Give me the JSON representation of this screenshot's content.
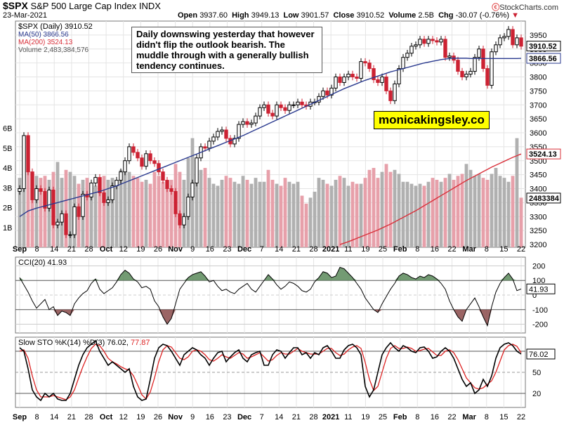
{
  "header": {
    "symbol": "$SPX",
    "name": "S&P 500 Large Cap Index INDX",
    "date": "23-Mar-2021",
    "open_label": "Open",
    "open": "3937.60",
    "high_label": "High",
    "high": "3949.13",
    "low_label": "Low",
    "low": "3901.57",
    "close_label": "Close",
    "close": "3910.52",
    "volume_label": "Volume",
    "volume": "2.5B",
    "chg_label": "Chg",
    "chg": "-30.07 (-0.76%)",
    "brand": "StockCharts.com"
  },
  "annotation": {
    "note": "Daily downswing yesterday that however didn't flip the outlook bearish. The muddle through with a generally bullish tendency continues.",
    "promo": "monicakingsley.co"
  },
  "colors": {
    "up": "#000000",
    "down": "#cc2233",
    "ma50": "#2a3a8f",
    "ma200": "#d9303a",
    "vol_up": "#b0b0b0",
    "vol_down": "#e7a0aa",
    "cci_fill_pos": "#5a8a5a",
    "cci_fill_neg": "#8a4a4a",
    "sto_k": "#000000",
    "sto_d": "#dd2222"
  },
  "chart_data": [
    {
      "type": "candlestick",
      "title": "$SPX (Daily) 3910.52",
      "legend": [
        "$SPX (Daily) 3910.52",
        "MA(50) 3866.56",
        "MA(200) 3524.13",
        "Volume 2,483,384,576"
      ],
      "ylim": [
        3190,
        4000
      ],
      "y_ticks": [
        "3200",
        "3250",
        "3300",
        "3350",
        "3400",
        "3450",
        "3500",
        "3550",
        "3600",
        "3650",
        "3700",
        "3750",
        "3800",
        "3850",
        "3900",
        "3950"
      ],
      "price_labels": {
        "last": "3910.52",
        "ma50": "3866.56",
        "ma200": "3524.13",
        "volume": "2483384"
      },
      "volume_ticks": [
        "1B",
        "2B",
        "3B",
        "4B",
        "5B",
        "6B"
      ],
      "volume_ylim_b": [
        0,
        11.4
      ],
      "x_labels": [
        "Sep",
        "8",
        "14",
        "21",
        "28",
        "Oct",
        "12",
        "19",
        "26",
        "Nov",
        "9",
        "16",
        "23",
        "Dec",
        "7",
        "14",
        "21",
        "28",
        "2021",
        "11",
        "19",
        "25",
        "Feb",
        "8",
        "16",
        "22",
        "Mar",
        "8",
        "15",
        "22"
      ],
      "series_close": [
        3400,
        3590,
        3460,
        3360,
        3400,
        3390,
        3330,
        3395,
        3270,
        3280,
        3310,
        3235,
        3235,
        3335,
        3300,
        3380,
        3370,
        3420,
        3440,
        3385,
        3350,
        3360,
        3410,
        3430,
        3460,
        3500,
        3550,
        3530,
        3510,
        3480,
        3525,
        3500,
        3490,
        3460,
        3430,
        3400,
        3390,
        3310,
        3270,
        3300,
        3370,
        3420,
        3510,
        3550,
        3545,
        3570,
        3585,
        3605,
        3610,
        3580,
        3560,
        3580,
        3630,
        3640,
        3630,
        3635,
        3660,
        3690,
        3700,
        3670,
        3660,
        3700,
        3690,
        3680,
        3700,
        3700,
        3710,
        3700,
        3695,
        3710,
        3710,
        3730,
        3750,
        3735,
        3760,
        3800,
        3780,
        3800,
        3810,
        3800,
        3795,
        3855,
        3850,
        3830,
        3790,
        3780,
        3800,
        3750,
        3715,
        3775,
        3830,
        3870,
        3885,
        3910,
        3915,
        3935,
        3920,
        3935,
        3930,
        3925,
        3935,
        3870,
        3875,
        3860,
        3820,
        3800,
        3810,
        3820,
        3870,
        3900,
        3830,
        3770,
        3890,
        3915,
        3940,
        3945,
        3970,
        3915,
        3940,
        3910
      ],
      "ma50": [
        3300,
        3310,
        3320,
        3325,
        3330,
        3334,
        3338,
        3342,
        3346,
        3350,
        3354,
        3358,
        3362,
        3366,
        3370,
        3374,
        3378,
        3382,
        3386,
        3390,
        3395,
        3400,
        3405,
        3410,
        3416,
        3422,
        3428,
        3434,
        3440,
        3446,
        3452,
        3458,
        3464,
        3470,
        3476,
        3482,
        3488,
        3494,
        3500,
        3506,
        3512,
        3518,
        3524,
        3530,
        3536,
        3542,
        3548,
        3554,
        3560,
        3566,
        3572,
        3578,
        3584,
        3590,
        3597,
        3604,
        3611,
        3618,
        3625,
        3632,
        3639,
        3646,
        3653,
        3660,
        3667,
        3674,
        3681,
        3688,
        3695,
        3702,
        3709,
        3716,
        3723,
        3730,
        3737,
        3744,
        3751,
        3758,
        3764,
        3770,
        3776,
        3782,
        3788,
        3793,
        3798,
        3803,
        3808,
        3813,
        3818,
        3822,
        3826,
        3830,
        3834,
        3838,
        3842,
        3846,
        3850,
        3853,
        3856,
        3859,
        3862,
        3864,
        3866,
        3867,
        3867,
        3867,
        3867,
        3866,
        3866,
        3866,
        3866,
        3866,
        3866,
        3866,
        3866,
        3866,
        3866,
        3866,
        3866,
        3866.56
      ],
      "ma200": [
        3200,
        3205,
        3210,
        3216,
        3222,
        3228,
        3234,
        3240,
        3246,
        3252,
        3259,
        3266,
        3273,
        3281,
        3289,
        3297,
        3305,
        3313,
        3321,
        3330,
        3339,
        3348,
        3357,
        3366,
        3375,
        3384,
        3393,
        3402,
        3411,
        3420,
        3429,
        3437,
        3445,
        3453,
        3461,
        3469,
        3477,
        3484,
        3491,
        3498,
        3505,
        3512,
        3518,
        3524.13
      ],
      "volume_b": [
        3.5,
        4,
        4,
        3.8,
        3.6,
        3.5,
        3.6,
        3.4,
        3.8,
        4.3,
        3.5,
        3.9,
        3.8,
        3.6,
        3.2,
        3.4,
        3.5,
        3.2,
        3.1,
        3.5,
        3.6,
        3.4,
        3.5,
        3.3,
        3.9,
        4.1,
        3.8,
        3.6,
        3.5,
        3.3,
        3.4,
        3.2,
        3.8,
        3.6,
        3.3,
        3.3,
        3.4,
        4.2,
        3.8,
        3.4,
        4.5,
        5.5,
        4.5,
        3.9,
        4,
        3.5,
        3.2,
        3.1,
        3.4,
        3.6,
        3.5,
        3.3,
        3.2,
        3.6,
        3.4,
        3.2,
        3.5,
        3.3,
        3.3,
        3.9,
        3.4,
        3.2,
        3.1,
        3.5,
        3.3,
        3.2,
        3.3,
        2.6,
        2.2,
        2.5,
        2.8,
        3.5,
        3.4,
        3.2,
        3.1,
        3.4,
        3.6,
        3.5,
        3.1,
        3.3,
        3.2,
        3.2,
        3.5,
        3.9,
        4,
        3.5,
        3.8,
        4.2,
        3.8,
        3.9,
        3.7,
        3.3,
        3.3,
        3.2,
        3.1,
        3.2,
        3.1,
        3.3,
        3.5,
        3.4,
        3.3,
        3.5,
        3.7,
        3.4,
        3.6,
        3.7,
        4.2,
        3.9,
        3.6,
        3.7,
        3.5,
        3.4,
        3.7,
        4,
        3.6,
        3.5,
        3.3,
        3.6,
        5.5,
        2.5
      ]
    },
    {
      "type": "line",
      "title": "CCI(20) 41.93",
      "ylim": [
        -260,
        260
      ],
      "y_ticks": [
        "-200",
        "-100",
        "0",
        "100",
        "200"
      ],
      "last_label": "41.93",
      "values": [
        120,
        70,
        20,
        -40,
        -90,
        -60,
        -30,
        -100,
        -80,
        -140,
        -110,
        -120,
        -140,
        -60,
        -20,
        10,
        30,
        80,
        110,
        40,
        10,
        30,
        50,
        90,
        140,
        170,
        150,
        110,
        90,
        50,
        60,
        40,
        -40,
        -80,
        -150,
        -200,
        -160,
        -60,
        40,
        80,
        120,
        140,
        150,
        160,
        130,
        90,
        100,
        60,
        30,
        40,
        20,
        10,
        40,
        60,
        80,
        40,
        20,
        60,
        100,
        140,
        110,
        70,
        40,
        60,
        90,
        80,
        60,
        30,
        20,
        40,
        90,
        120,
        160,
        150,
        120,
        130,
        190,
        180,
        150,
        120,
        80,
        40,
        -20,
        -60,
        -100,
        -120,
        -60,
        -10,
        40,
        80,
        130,
        150,
        140,
        120,
        110,
        130,
        120,
        140,
        130,
        110,
        80,
        40,
        -40,
        -100,
        -150,
        -180,
        -100,
        -60,
        -20,
        -80,
        -150,
        -210,
        -80,
        20,
        80,
        120,
        150,
        110,
        30,
        41.93
      ]
    },
    {
      "type": "line",
      "title": "Slow STO %K(14) %D(3) 76.02, 77.87",
      "ylim": [
        0,
        100
      ],
      "y_ticks": [
        "20",
        "50",
        "80"
      ],
      "last_label": "76.02",
      "series": [
        {
          "name": "%K(14)",
          "values": [
            85,
            80,
            55,
            25,
            15,
            10,
            20,
            15,
            20,
            12,
            10,
            10,
            20,
            40,
            60,
            75,
            85,
            90,
            95,
            80,
            70,
            60,
            65,
            60,
            55,
            50,
            55,
            30,
            15,
            10,
            12,
            40,
            70,
            85,
            90,
            88,
            80,
            70,
            60,
            75,
            80,
            85,
            82,
            75,
            70,
            60,
            70,
            78,
            80,
            65,
            72,
            78,
            82,
            70,
            65,
            75,
            78,
            80,
            60,
            60,
            75,
            82,
            80,
            70,
            78,
            85,
            85,
            75,
            78,
            70,
            78,
            75,
            85,
            88,
            80,
            70,
            70,
            82,
            88,
            90,
            85,
            75,
            30,
            15,
            25,
            50,
            75,
            85,
            92,
            85,
            80,
            88,
            85,
            80,
            78,
            85,
            86,
            80,
            70,
            72,
            80,
            85,
            80,
            70,
            55,
            40,
            30,
            35,
            20,
            25,
            40,
            30,
            45,
            70,
            85,
            90,
            92,
            88,
            80,
            76.02
          ]
        },
        {
          "name": "%D(3)",
          "values": [
            80,
            82,
            70,
            45,
            25,
            15,
            15,
            15,
            17,
            15,
            13,
            11,
            15,
            25,
            42,
            58,
            72,
            84,
            90,
            88,
            80,
            70,
            65,
            62,
            58,
            55,
            53,
            45,
            32,
            18,
            12,
            22,
            42,
            65,
            82,
            88,
            86,
            78,
            70,
            68,
            72,
            80,
            82,
            80,
            75,
            68,
            66,
            70,
            75,
            72,
            70,
            74,
            78,
            76,
            70,
            72,
            75,
            78,
            72,
            66,
            68,
            74,
            78,
            76,
            76,
            80,
            84,
            80,
            78,
            76,
            76,
            76,
            80,
            84,
            84,
            78,
            74,
            76,
            82,
            86,
            88,
            84,
            64,
            40,
            24,
            30,
            50,
            70,
            84,
            88,
            84,
            84,
            86,
            84,
            80,
            81,
            83,
            84,
            79,
            74,
            74,
            80,
            82,
            78,
            68,
            55,
            42,
            35,
            28,
            26,
            28,
            33,
            38,
            50,
            66,
            82,
            88,
            90,
            87,
            77.87
          ]
        }
      ]
    }
  ]
}
